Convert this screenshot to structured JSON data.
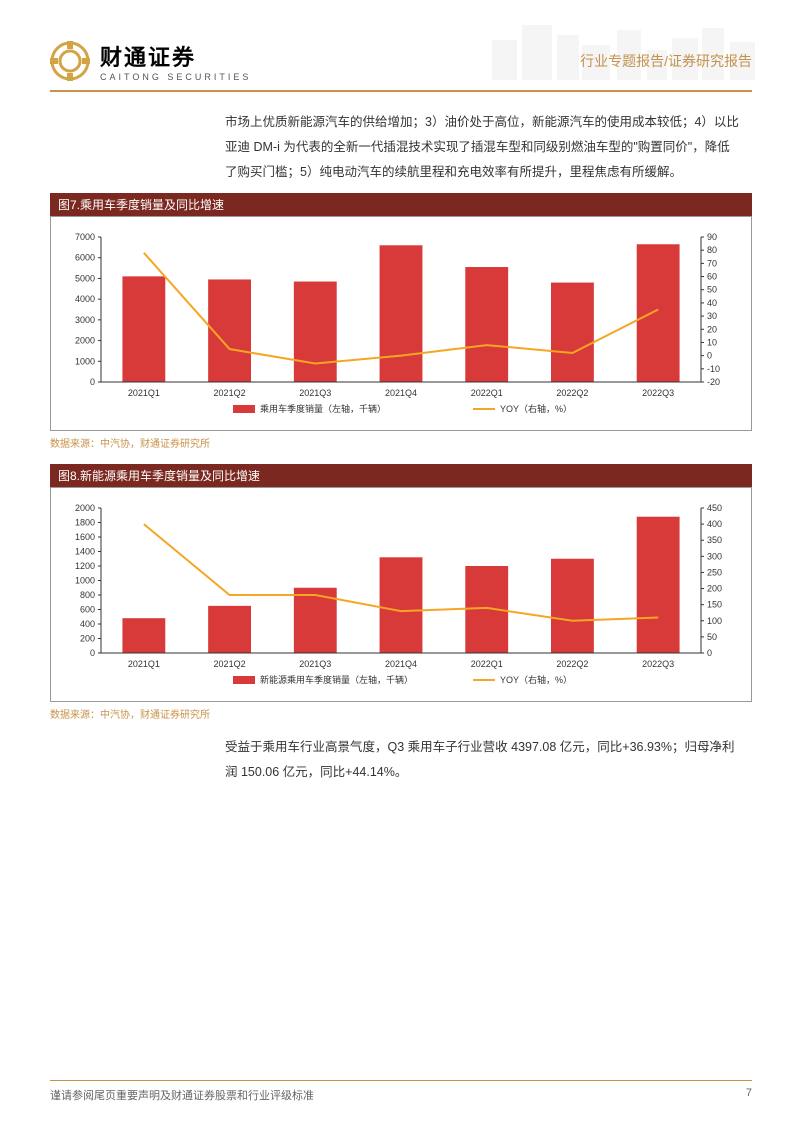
{
  "header": {
    "company_cn": "财通证券",
    "company_en": "CAITONG SECURITIES",
    "breadcrumb": "行业专题报告/证券研究报告"
  },
  "text": {
    "para1": "市场上优质新能源汽车的供给增加；3）油价处于高位，新能源汽车的使用成本较低；4）以比亚迪 DM-i 为代表的全新一代插混技术实现了插混车型和同级别燃油车型的\"购置同价\"，降低了购买门槛；5）纯电动汽车的续航里程和充电效率有所提升，里程焦虑有所缓解。",
    "para2": "受益于乘用车行业高景气度，Q3 乘用车子行业营收 4397.08 亿元，同比+36.93%；归母净利润 150.06 亿元，同比+44.14%。"
  },
  "chart7": {
    "title": "图7.乘用车季度销量及同比增速",
    "source": "数据来源：中汽协，财通证券研究所",
    "type": "bar_line_dual_axis",
    "categories": [
      "2021Q1",
      "2021Q2",
      "2021Q3",
      "2021Q4",
      "2022Q1",
      "2022Q2",
      "2022Q3"
    ],
    "bar_values": [
      5100,
      4950,
      4850,
      6600,
      5550,
      4800,
      6650
    ],
    "line_values": [
      78,
      5,
      -6,
      0,
      8,
      2,
      35
    ],
    "y1_min": 0,
    "y1_max": 7000,
    "y1_step": 1000,
    "y2_min": -20,
    "y2_max": 90,
    "y2_step": 10,
    "bar_color": "#d83a3a",
    "line_color": "#f5a623",
    "bar_width": 0.5,
    "legend_bar": "乘用车季度销量（左轴，千辆）",
    "legend_line": "YOY（右轴，%）",
    "background_color": "#ffffff",
    "axis_color": "#333333",
    "label_fontsize": 9
  },
  "chart8": {
    "title": "图8.新能源乘用车季度销量及同比增速",
    "source": "数据来源：中汽协，财通证券研究所",
    "type": "bar_line_dual_axis",
    "categories": [
      "2021Q1",
      "2021Q2",
      "2021Q3",
      "2021Q4",
      "2022Q1",
      "2022Q2",
      "2022Q3"
    ],
    "bar_values": [
      480,
      650,
      900,
      1320,
      1200,
      1300,
      1880
    ],
    "line_values": [
      400,
      180,
      180,
      130,
      140,
      100,
      110
    ],
    "y1_min": 0,
    "y1_max": 2000,
    "y1_step": 200,
    "y2_min": 0,
    "y2_max": 450,
    "y2_step": 50,
    "bar_color": "#d83a3a",
    "line_color": "#f5a623",
    "bar_width": 0.5,
    "legend_bar": "新能源乘用车季度销量（左轴，千辆）",
    "legend_line": "YOY（右轴，%）",
    "background_color": "#ffffff",
    "axis_color": "#333333",
    "label_fontsize": 9
  },
  "footer": {
    "disclaimer": "谨请参阅尾页重要声明及财通证券股票和行业评级标准",
    "page": "7"
  }
}
